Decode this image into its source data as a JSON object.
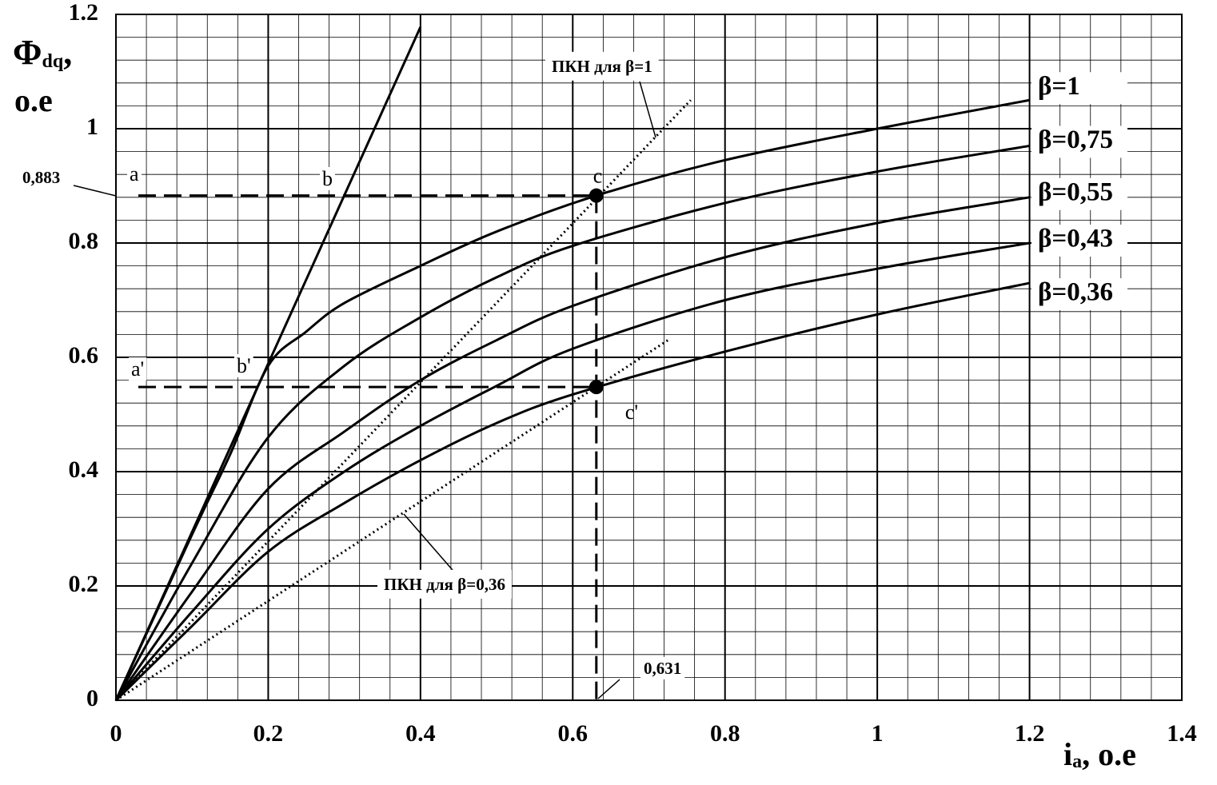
{
  "chart_data": {
    "type": "line",
    "ylabel": {
      "main": "Φ",
      "sub": "dq",
      "tail": ",",
      "unit": "о.е"
    },
    "xlabel": {
      "main": "i",
      "sub": "a",
      "tail": ", о.е"
    },
    "xlim": [
      0,
      1.4
    ],
    "xticks": [
      0,
      0.2,
      0.4,
      0.6,
      0.8,
      1,
      1.2,
      1.4
    ],
    "ylim": [
      0,
      1.2
    ],
    "yticks": [
      0,
      0.2,
      0.4,
      0.6,
      0.8,
      1,
      1.2
    ],
    "grid": true,
    "minor_grid": 0.04,
    "series": [
      {
        "name": null,
        "color": "#000000",
        "style": "solid",
        "x": [
          0,
          0.4
        ],
        "values": [
          0,
          1.178
        ]
      },
      {
        "name": "β=1",
        "color": "#000000",
        "style": "solid",
        "x": [
          0,
          0.1,
          0.15,
          0.2,
          0.25,
          0.3,
          0.4,
          0.5,
          0.631,
          0.8,
          1.0,
          1.2
        ],
        "values": [
          0,
          0.29,
          0.43,
          0.585,
          0.645,
          0.695,
          0.76,
          0.82,
          0.883,
          0.945,
          1.0,
          1.05
        ]
      },
      {
        "name": "β=0,75",
        "color": "#000000",
        "style": "solid",
        "x": [
          0,
          0.1,
          0.2,
          0.3,
          0.4,
          0.5,
          0.6,
          0.8,
          1.0,
          1.2
        ],
        "values": [
          0,
          0.24,
          0.46,
          0.585,
          0.67,
          0.74,
          0.795,
          0.87,
          0.925,
          0.97
        ]
      },
      {
        "name": "β=0,55",
        "color": "#000000",
        "style": "solid",
        "x": [
          0,
          0.1,
          0.2,
          0.3,
          0.4,
          0.5,
          0.6,
          0.8,
          1.0,
          1.2
        ],
        "values": [
          0,
          0.19,
          0.37,
          0.47,
          0.56,
          0.63,
          0.69,
          0.775,
          0.835,
          0.88
        ]
      },
      {
        "name": "β=0,43",
        "color": "#000000",
        "style": "solid",
        "x": [
          0,
          0.1,
          0.2,
          0.3,
          0.4,
          0.5,
          0.6,
          0.8,
          1.0,
          1.2
        ],
        "values": [
          0,
          0.155,
          0.3,
          0.4,
          0.48,
          0.55,
          0.615,
          0.7,
          0.755,
          0.8
        ]
      },
      {
        "name": "β=0,36",
        "color": "#000000",
        "style": "solid",
        "x": [
          0,
          0.1,
          0.2,
          0.3,
          0.4,
          0.5,
          0.6,
          0.8,
          1.0,
          1.2
        ],
        "values": [
          0,
          0.13,
          0.26,
          0.345,
          0.42,
          0.485,
          0.535,
          0.61,
          0.675,
          0.73
        ]
      },
      {
        "name": "ПКН для β=1",
        "color": "#000000",
        "style": "dotted",
        "x": [
          0,
          0.755
        ],
        "values": [
          0,
          1.05
        ]
      },
      {
        "name": "ПКН для β=0,36",
        "color": "#000000",
        "style": "dotted",
        "x": [
          0,
          0.725
        ],
        "values": [
          0,
          0.63
        ]
      }
    ],
    "points": [
      {
        "name": "c",
        "x": 0.631,
        "y": 0.883
      },
      {
        "name": "c'",
        "x": 0.631,
        "y": 0.548
      }
    ],
    "ref_labels": [
      {
        "value": 0.883,
        "label": "0,883"
      },
      {
        "value": 0.631,
        "label": "0,631"
      }
    ],
    "annotations": [
      "a",
      "b",
      "a'",
      "b'"
    ]
  }
}
